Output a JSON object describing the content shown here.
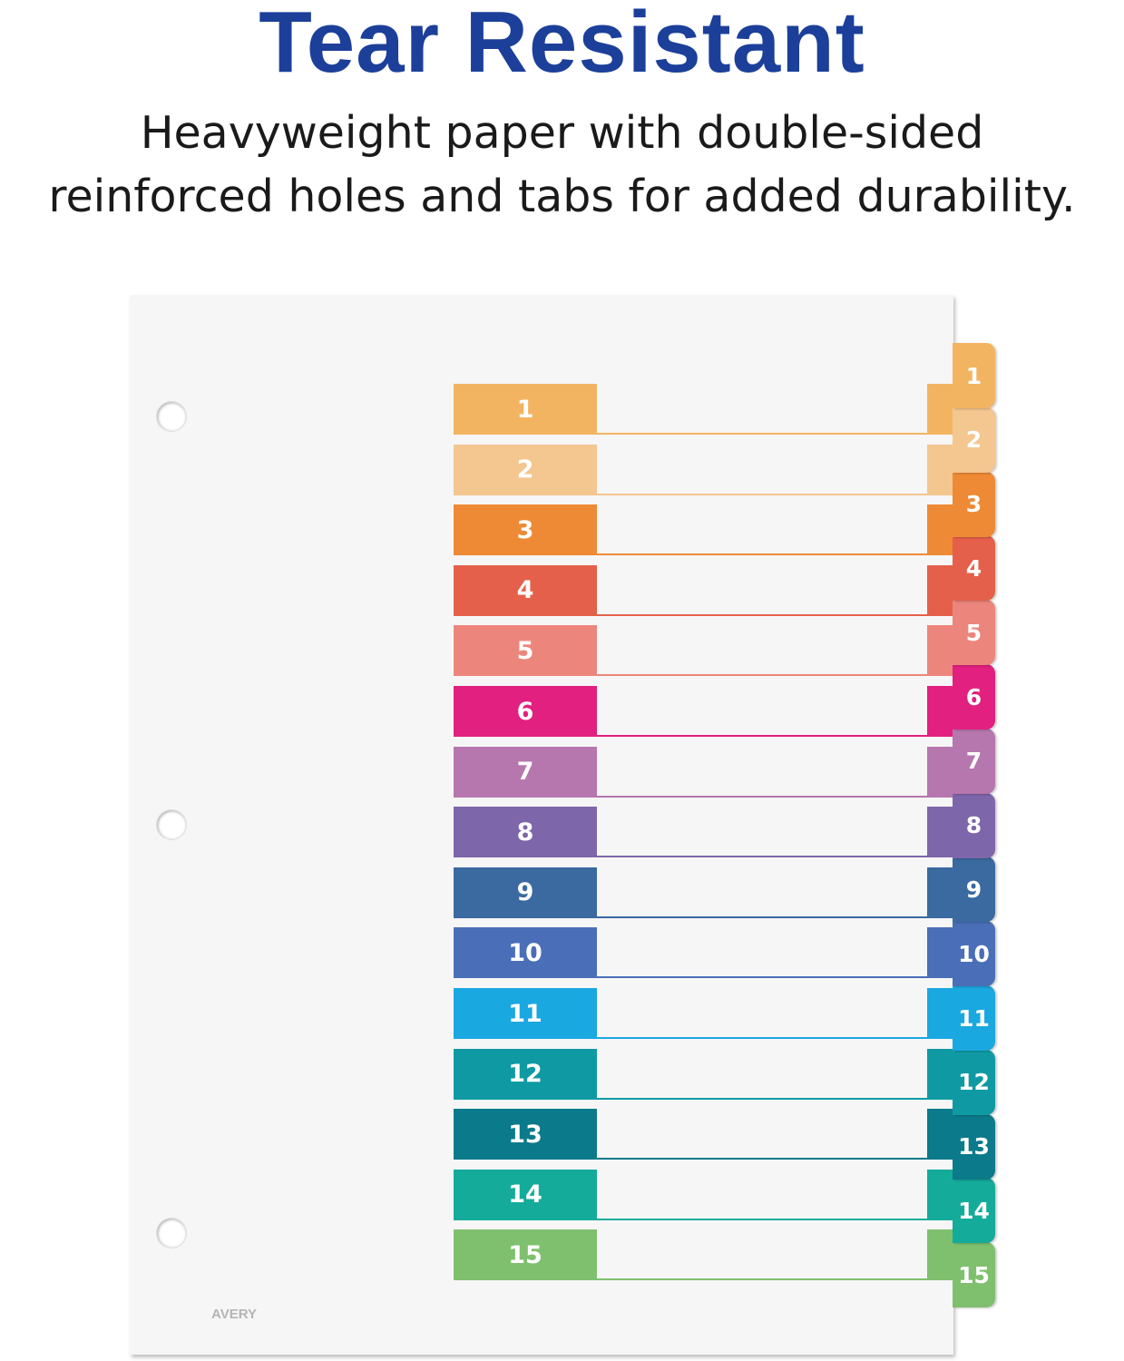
{
  "headline": "Tear Resistant",
  "subtitle_line1": "Heavyweight paper with double-sided",
  "subtitle_line2": "reinforced holes and tabs for added durability.",
  "logo_text": "AVERY",
  "tabs": [
    {
      "label": "1",
      "color": "#f3b462"
    },
    {
      "label": "2",
      "color": "#f4c690"
    },
    {
      "label": "3",
      "color": "#ee8a35"
    },
    {
      "label": "4",
      "color": "#e5604a"
    },
    {
      "label": "5",
      "color": "#ec867c"
    },
    {
      "label": "6",
      "color": "#e2207f"
    },
    {
      "label": "7",
      "color": "#b676ae"
    },
    {
      "label": "8",
      "color": "#7e66aa"
    },
    {
      "label": "9",
      "color": "#3a6aa0"
    },
    {
      "label": "10",
      "color": "#4a6fb8"
    },
    {
      "label": "11",
      "color": "#1aa8e0"
    },
    {
      "label": "12",
      "color": "#0f9aa3"
    },
    {
      "label": "13",
      "color": "#0b7a8a"
    },
    {
      "label": "14",
      "color": "#14ab9a"
    },
    {
      "label": "15",
      "color": "#7fc06e"
    }
  ]
}
